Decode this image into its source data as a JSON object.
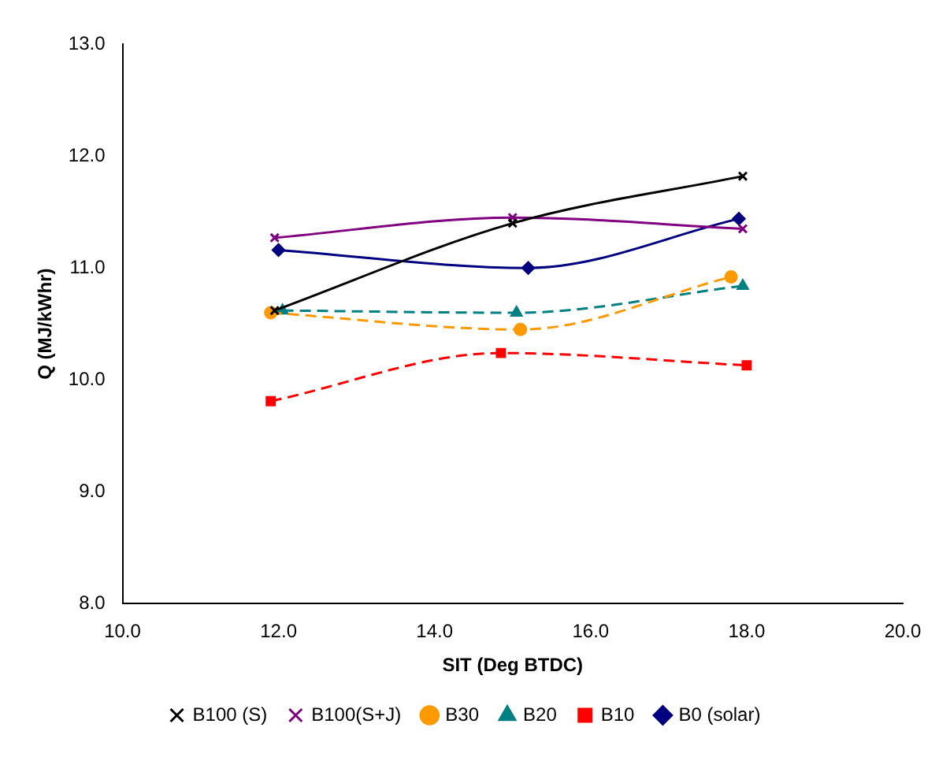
{
  "chart_data": {
    "type": "line",
    "xlabel": "SIT (Deg BTDC)",
    "ylabel": "Q (MJ/kWhr)",
    "xlim": [
      10,
      20
    ],
    "xticks": [
      {
        "value": 10,
        "label": "10.0"
      },
      {
        "value": 12,
        "label": "12.0"
      },
      {
        "value": 14,
        "label": "14.0"
      },
      {
        "value": 16,
        "label": "16.0"
      },
      {
        "value": 18,
        "label": "18.0"
      },
      {
        "value": 20,
        "label": "20.0"
      }
    ],
    "ylim": [
      8,
      13
    ],
    "yticks": [
      {
        "value": 8,
        "label": "8.0"
      },
      {
        "value": 9,
        "label": "9.0"
      },
      {
        "value": 10,
        "label": "10.0"
      },
      {
        "value": 11,
        "label": "11.0"
      },
      {
        "value": 12,
        "label": "12.0"
      },
      {
        "value": 13,
        "label": "13.0"
      }
    ],
    "grid": false,
    "legend": "bottom",
    "series": [
      {
        "name": "B0 (solar)",
        "color": "#000080",
        "marker": "diamond",
        "line_style": "solid",
        "x": [
          12.0,
          15.2,
          17.9
        ],
        "values": [
          11.16,
          11.0,
          11.44
        ]
      },
      {
        "name": "B10",
        "color": "#ff0000",
        "marker": "square",
        "line_style": "dashed",
        "x": [
          11.9,
          14.85,
          18.0
        ],
        "values": [
          9.81,
          10.24,
          10.13
        ]
      },
      {
        "name": "B20",
        "color": "#008080",
        "marker": "triangle",
        "line_style": "dashed",
        "x": [
          12.05,
          15.05,
          17.95
        ],
        "values": [
          10.62,
          10.6,
          10.84
        ]
      },
      {
        "name": "B30",
        "color": "#ff9900",
        "marker": "circle",
        "line_style": "dashed",
        "x": [
          11.9,
          15.1,
          17.8
        ],
        "values": [
          10.6,
          10.45,
          10.92
        ]
      },
      {
        "name": "B100(S+J)",
        "color": "#800080",
        "marker": "cross",
        "line_style": "solid",
        "x": [
          11.95,
          15.0,
          17.95
        ],
        "values": [
          11.27,
          11.45,
          11.35
        ]
      },
      {
        "name": "B100 (S)",
        "color": "#000000",
        "marker": "cross",
        "line_style": "solid",
        "x": [
          11.95,
          15.0,
          17.95
        ],
        "values": [
          10.62,
          11.4,
          11.82
        ]
      }
    ]
  }
}
